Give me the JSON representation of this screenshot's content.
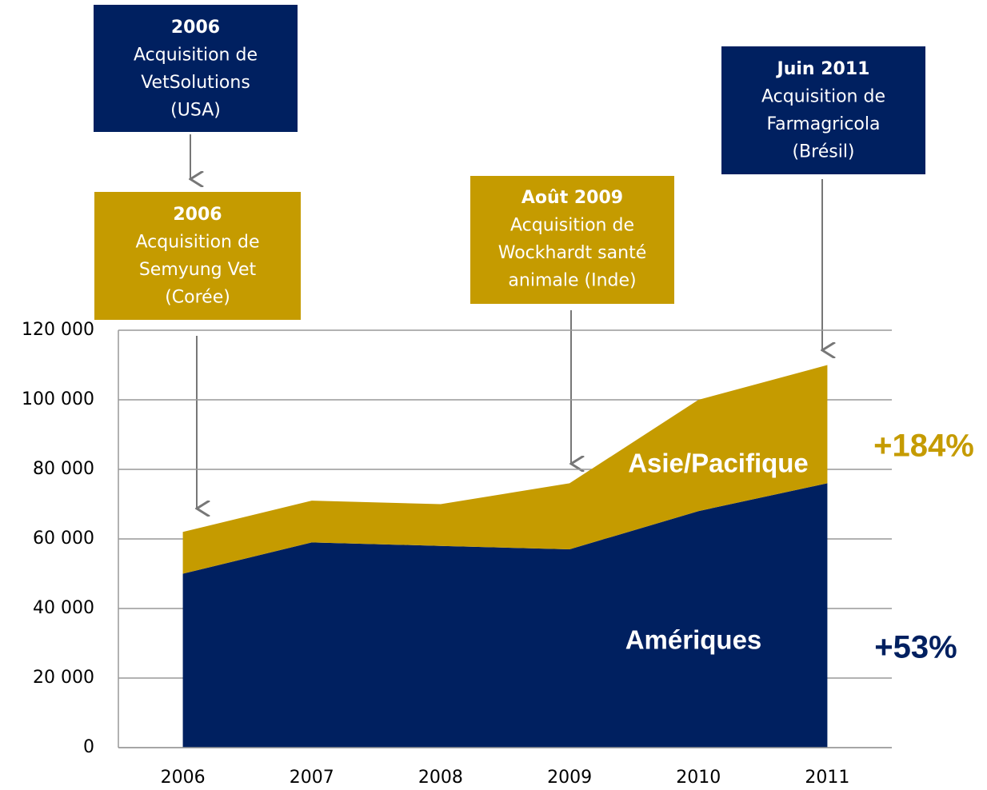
{
  "chart_data": {
    "type": "stacked_area",
    "categories": [
      "2006",
      "2007",
      "2008",
      "2009",
      "2010",
      "2011"
    ],
    "series": [
      {
        "name": "Amériques",
        "color": "#002060",
        "growth": "+53%",
        "values": [
          50000,
          59000,
          58000,
          57000,
          68000,
          76000
        ]
      },
      {
        "name": "Asie/Pacifique",
        "color": "#c59b00",
        "growth": "+184%",
        "values": [
          12000,
          12000,
          12000,
          19000,
          32000,
          34000
        ]
      }
    ],
    "ylim": [
      0,
      120000
    ],
    "yticks": [
      0,
      {
        "value": 20000,
        "label": "20 000"
      },
      {
        "value": 40000,
        "label": "40 000"
      },
      {
        "value": 60000,
        "label": "60 000"
      },
      {
        "value": 80000,
        "label": "80 000"
      },
      {
        "value": 100000,
        "label": "100 000"
      },
      {
        "value": 120000,
        "label": "120 000"
      }
    ],
    "grid": true,
    "annotations": [
      {
        "color": "#002060",
        "lines": [
          "2006",
          "Acquisition de",
          "VetSolutions",
          "(USA)"
        ]
      },
      {
        "color": "#c59b00",
        "lines": [
          "2006",
          "Acquisition de",
          "Semyung Vet",
          "(Corée)"
        ]
      },
      {
        "color": "#c59b00",
        "lines": [
          "Août 2009",
          "Acquisition de",
          "Wockhardt santé",
          "animale (Inde)"
        ]
      },
      {
        "color": "#002060",
        "lines": [
          "Juin 2011",
          "Acquisition de",
          "Farmagricola",
          "(Brésil)"
        ]
      }
    ]
  }
}
